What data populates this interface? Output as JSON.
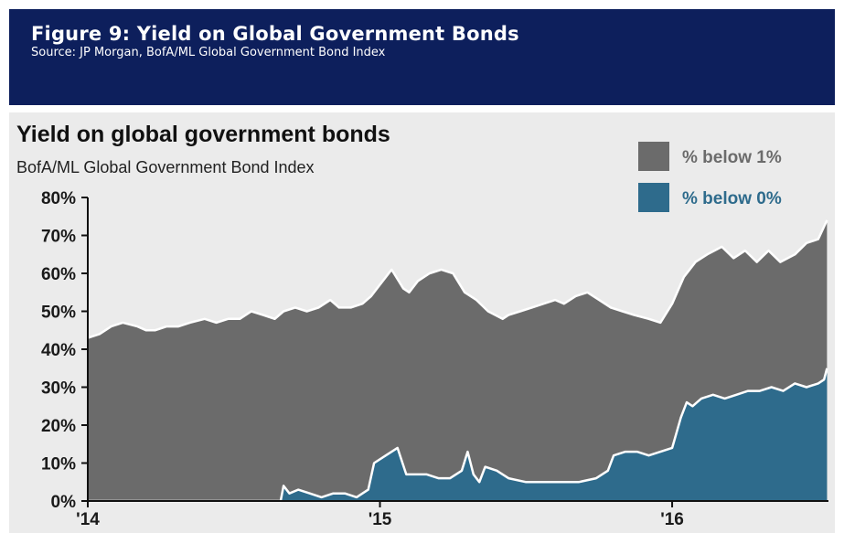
{
  "header": {
    "title": "Figure 9: Yield on Global Government Bonds",
    "source": "Source: JP Morgan, BofA/ML Global Government Bond Index"
  },
  "colors": {
    "header_bg": "#0d1f5c",
    "panel_bg": "#ebebeb",
    "below_1": "#6b6b6b",
    "below_0": "#2e6b8c",
    "edge": "#ffffff"
  },
  "chart_data": {
    "type": "area",
    "title": "Yield on global government bonds",
    "subtitle": "BofA/ML Global Government Bond Index",
    "xlabel": "",
    "ylabel": "",
    "ylim": [
      0,
      80
    ],
    "xlim": [
      2014.0,
      2016.535
    ],
    "grid": false,
    "legend_position": "top-right",
    "x_ticks": [
      {
        "value": 2014.0,
        "label": "'14"
      },
      {
        "value": 2015.0,
        "label": "'15"
      },
      {
        "value": 2016.0,
        "label": "'16"
      }
    ],
    "y_ticks": [
      {
        "value": 0,
        "label": "0%"
      },
      {
        "value": 10,
        "label": "10%"
      },
      {
        "value": 20,
        "label": "20%"
      },
      {
        "value": 30,
        "label": "30%"
      },
      {
        "value": 40,
        "label": "40%"
      },
      {
        "value": 50,
        "label": "50%"
      },
      {
        "value": 60,
        "label": "60%"
      },
      {
        "value": 70,
        "label": "70%"
      },
      {
        "value": 80,
        "label": "80%"
      }
    ],
    "series": [
      {
        "name": "% below 1%",
        "color": "#6b6b6b",
        "x": [
          2014.0,
          2014.04,
          2014.08,
          2014.12,
          2014.17,
          2014.2,
          2014.23,
          2014.27,
          2014.31,
          2014.35,
          2014.4,
          2014.44,
          2014.48,
          2014.52,
          2014.56,
          2014.6,
          2014.64,
          2014.67,
          2014.71,
          2014.75,
          2014.79,
          2014.83,
          2014.86,
          2014.9,
          2014.94,
          2014.97,
          2015.0,
          2015.04,
          2015.08,
          2015.1,
          2015.13,
          2015.17,
          2015.21,
          2015.25,
          2015.29,
          2015.33,
          2015.37,
          2015.42,
          2015.44,
          2015.48,
          2015.52,
          2015.56,
          2015.6,
          2015.63,
          2015.67,
          2015.71,
          2015.75,
          2015.79,
          2015.83,
          2015.87,
          2015.92,
          2015.96,
          2016.0,
          2016.04,
          2016.08,
          2016.12,
          2016.17,
          2016.21,
          2016.25,
          2016.29,
          2016.33,
          2016.37,
          2016.42,
          2016.46,
          2016.5,
          2016.53
        ],
        "values": [
          43,
          44,
          46,
          47,
          46,
          45,
          45,
          46,
          46,
          47,
          48,
          47,
          48,
          48,
          50,
          49,
          48,
          50,
          51,
          50,
          51,
          53,
          51,
          51,
          52,
          54,
          57,
          61,
          56,
          55,
          58,
          60,
          61,
          60,
          55,
          53,
          50,
          48,
          49,
          50,
          51,
          52,
          53,
          52,
          54,
          55,
          53,
          51,
          50,
          49,
          48,
          47,
          52,
          59,
          63,
          65,
          67,
          64,
          66,
          63,
          66,
          63,
          65,
          68,
          69,
          74
        ]
      },
      {
        "name": "% below 0%",
        "color": "#2e6b8c",
        "x": [
          2014.0,
          2014.66,
          2014.67,
          2014.69,
          2014.72,
          2014.76,
          2014.8,
          2014.84,
          2014.88,
          2014.92,
          2014.94,
          2014.96,
          2014.98,
          2015.02,
          2015.06,
          2015.09,
          2015.12,
          2015.16,
          2015.2,
          2015.24,
          2015.28,
          2015.3,
          2015.32,
          2015.34,
          2015.36,
          2015.4,
          2015.44,
          2015.5,
          2015.56,
          2015.62,
          2015.68,
          2015.74,
          2015.78,
          2015.8,
          2015.84,
          2015.88,
          2015.92,
          2015.96,
          2016.0,
          2016.03,
          2016.05,
          2016.07,
          2016.1,
          2016.14,
          2016.18,
          2016.22,
          2016.26,
          2016.3,
          2016.34,
          2016.38,
          2016.42,
          2016.46,
          2016.5,
          2016.52,
          2016.53
        ],
        "values": [
          0,
          0,
          4,
          2,
          3,
          2,
          1,
          2,
          2,
          1,
          2,
          3,
          10,
          12,
          14,
          7,
          7,
          7,
          6,
          6,
          8,
          13,
          7,
          5,
          9,
          8,
          6,
          5,
          5,
          5,
          5,
          6,
          8,
          12,
          13,
          13,
          12,
          13,
          14,
          22,
          26,
          25,
          27,
          28,
          27,
          28,
          29,
          29,
          30,
          29,
          31,
          30,
          31,
          32,
          35
        ]
      }
    ]
  }
}
